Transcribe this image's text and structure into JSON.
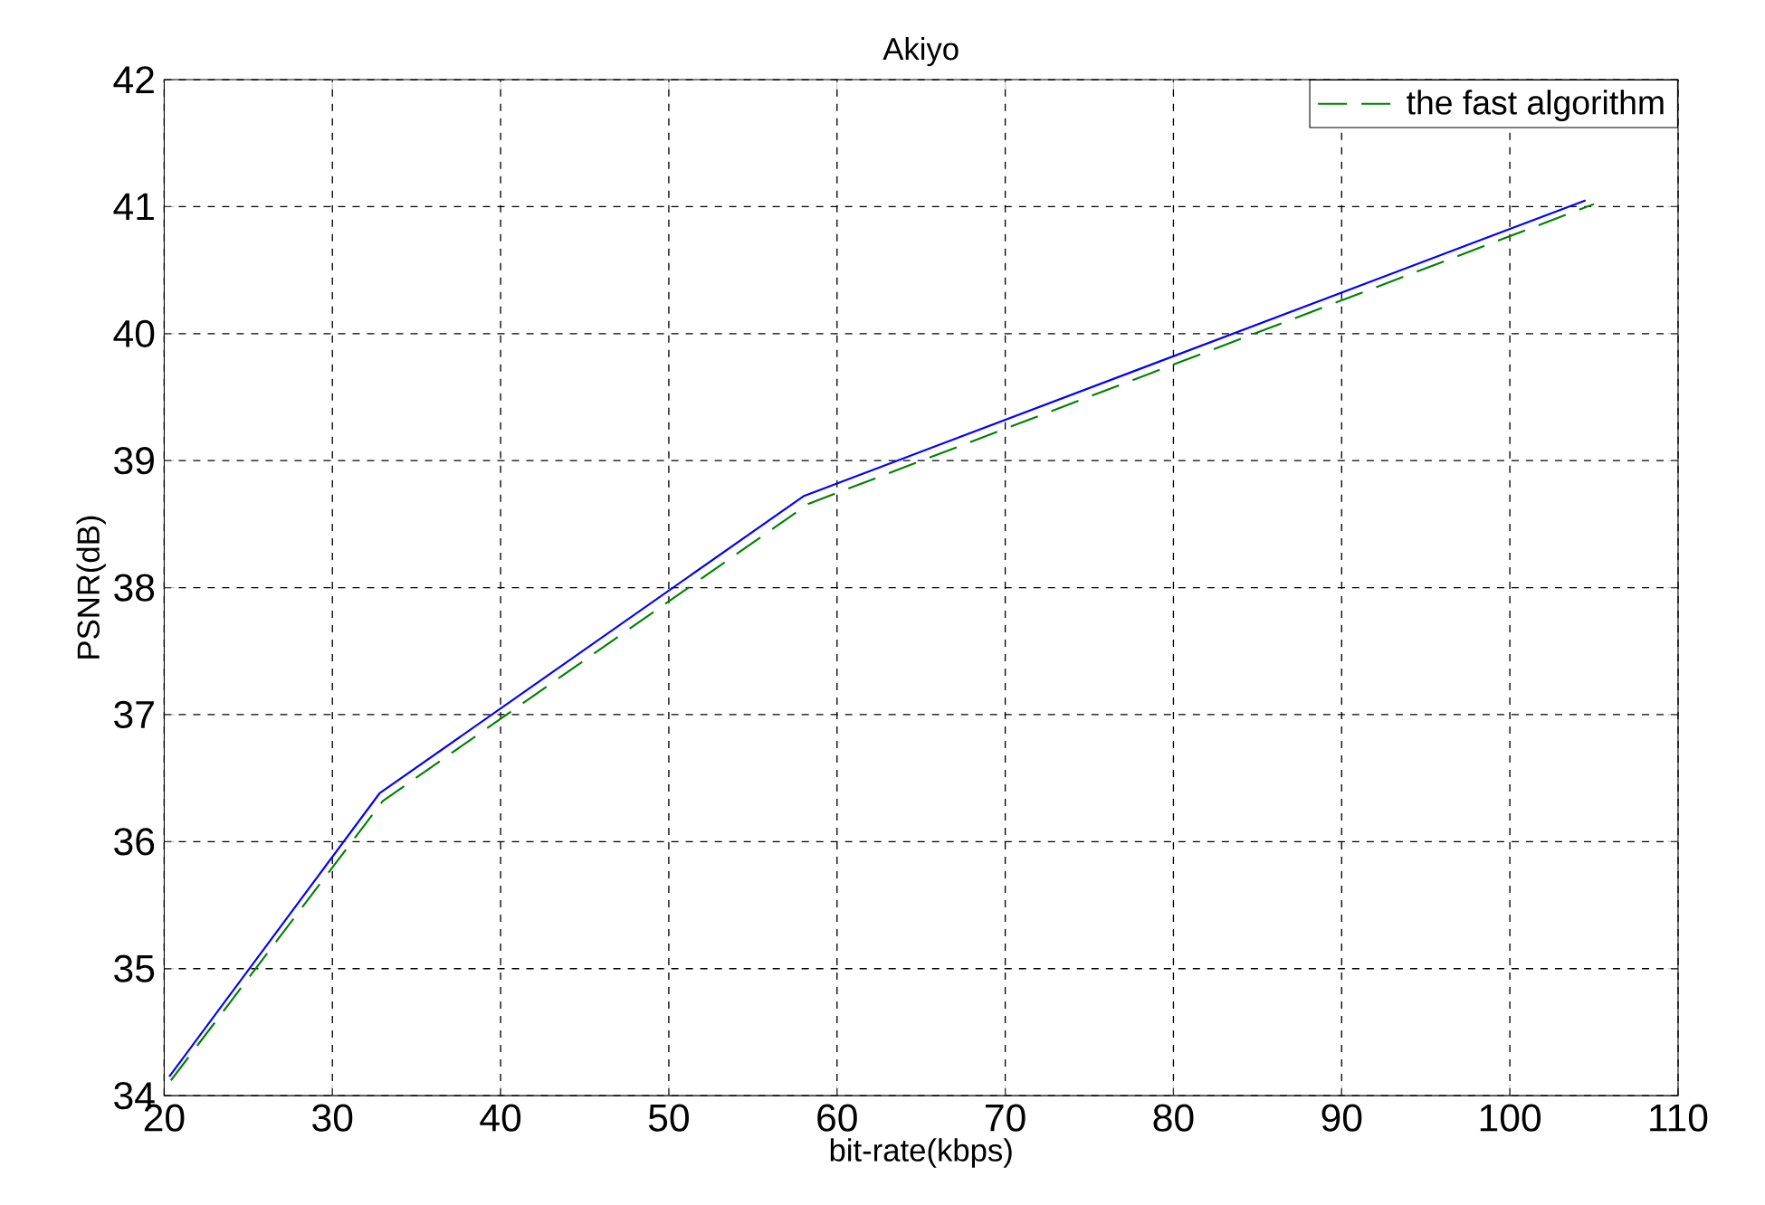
{
  "chart_data": {
    "type": "line",
    "title": "Akiyo",
    "xlabel": "bit-rate(kbps)",
    "ylabel": "PSNR(dB)",
    "xlim": [
      20,
      110
    ],
    "ylim": [
      34,
      42
    ],
    "xticks": [
      20,
      30,
      40,
      50,
      60,
      70,
      80,
      90,
      100,
      110
    ],
    "yticks": [
      34,
      35,
      36,
      37,
      38,
      39,
      40,
      41,
      42
    ],
    "grid": true,
    "legend": "top right",
    "marker": "none",
    "series": [
      {
        "color": "#0000ff",
        "line_style": "solid",
        "x": [
          20.3,
          32.8,
          58,
          104.5
        ],
        "values": [
          34.15,
          36.38,
          38.72,
          41.05
        ]
      },
      {
        "name": "the fast algorithm",
        "color": "#008000",
        "line_style": "dashed",
        "x": [
          20.4,
          33,
          58.3,
          105
        ],
        "values": [
          34.12,
          36.32,
          38.66,
          41.02
        ]
      }
    ]
  }
}
